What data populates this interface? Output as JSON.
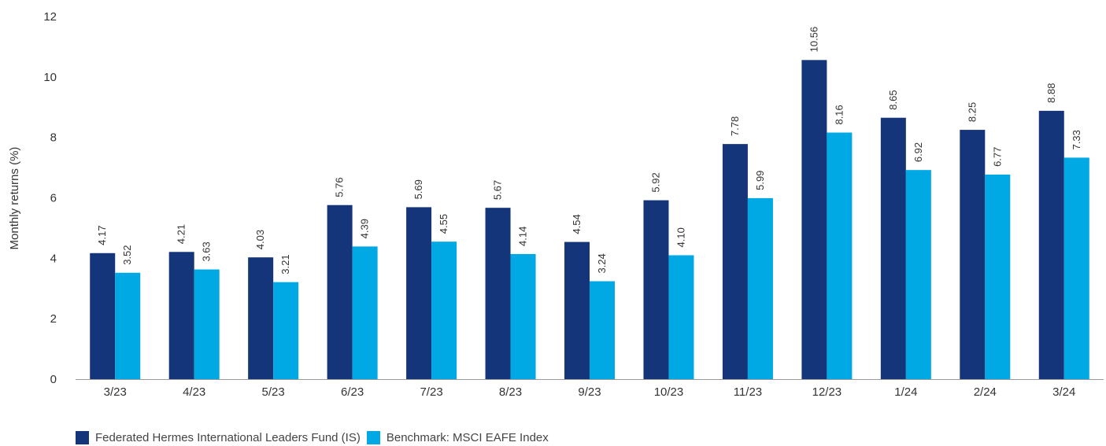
{
  "chart_data": {
    "type": "bar",
    "ylabel": "Monthly returns (%)",
    "ylim": [
      0,
      12
    ],
    "yticks": [
      0,
      2,
      4,
      6,
      8,
      10,
      12
    ],
    "grid": false,
    "legend_position": "bottom-left",
    "categories": [
      "3/23",
      "4/23",
      "5/23",
      "6/23",
      "7/23",
      "8/23",
      "9/23",
      "10/23",
      "11/23",
      "12/23",
      "1/24",
      "2/24",
      "3/24"
    ],
    "series": [
      {
        "name": "Federated Hermes International Leaders Fund (IS)",
        "color": "#15357a",
        "values": [
          4.17,
          4.21,
          4.03,
          5.76,
          5.69,
          5.67,
          4.54,
          5.92,
          7.78,
          10.56,
          8.65,
          8.25,
          8.88
        ],
        "labels": [
          "4.17",
          "4.21",
          "4.03",
          "5.76",
          "5.69",
          "5.67",
          "4.54",
          "5.92",
          "7.78",
          "10.56",
          "8.65",
          "8.25",
          "8.88"
        ]
      },
      {
        "name": "Benchmark: MSCI EAFE Index",
        "color": "#00a9e4",
        "values": [
          3.52,
          3.63,
          3.21,
          4.39,
          4.55,
          4.14,
          3.24,
          4.1,
          5.99,
          8.16,
          6.92,
          6.77,
          7.33
        ],
        "labels": [
          "3.52",
          "3.63",
          "3.21",
          "4.39",
          "4.55",
          "4.14",
          "3.24",
          "4.10",
          "5.99",
          "8.16",
          "6.92",
          "6.77",
          "7.33"
        ]
      }
    ]
  }
}
